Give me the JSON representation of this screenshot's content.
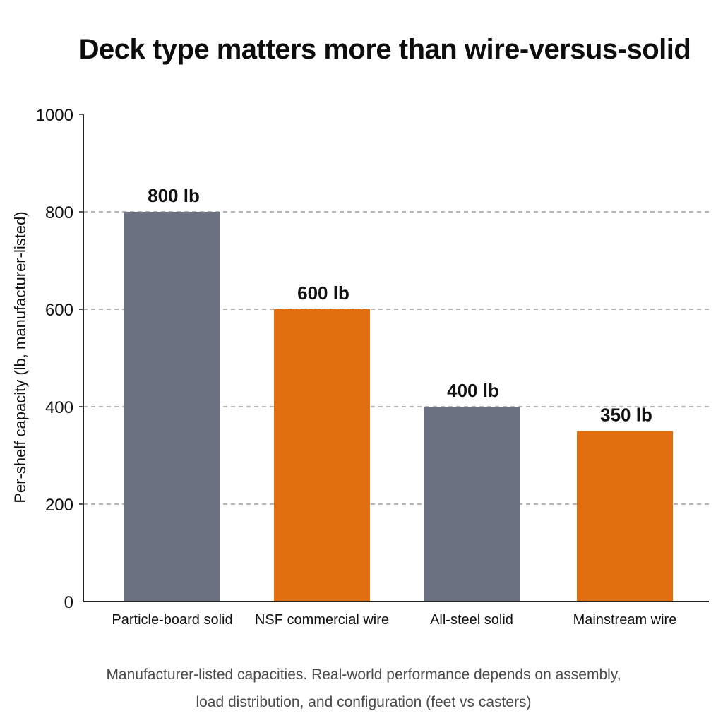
{
  "chart_data": {
    "type": "bar",
    "title": "Deck type matters more than wire-versus-solid",
    "xlabel": "",
    "ylabel": "Per-shelf capacity (lb, manufacturer-listed)",
    "categories": [
      "Particle-board solid",
      "NSF commercial wire",
      "All-steel solid",
      "Mainstream wire"
    ],
    "values": [
      800,
      600,
      400,
      350
    ],
    "data_labels": [
      "800 lb",
      "600 lb",
      "400 lb",
      "350 lb"
    ],
    "bar_colors": [
      "#6b7180",
      "#e06e0e",
      "#6b7180",
      "#e06e0e"
    ],
    "ylim": [
      0,
      1000
    ],
    "yticks": [
      0,
      200,
      400,
      600,
      800,
      1000
    ],
    "grid": "dashed horizontal",
    "legend": "none"
  },
  "caption": {
    "line1": "Manufacturer-listed capacities. Real-world performance depends on assembly,",
    "line2": "load distribution, and configuration (feet vs casters)"
  },
  "colors": {
    "gray_bar": "#6b7180",
    "orange_bar": "#e06e0e",
    "grid": "#8a8a8a",
    "axis": "#222222"
  }
}
